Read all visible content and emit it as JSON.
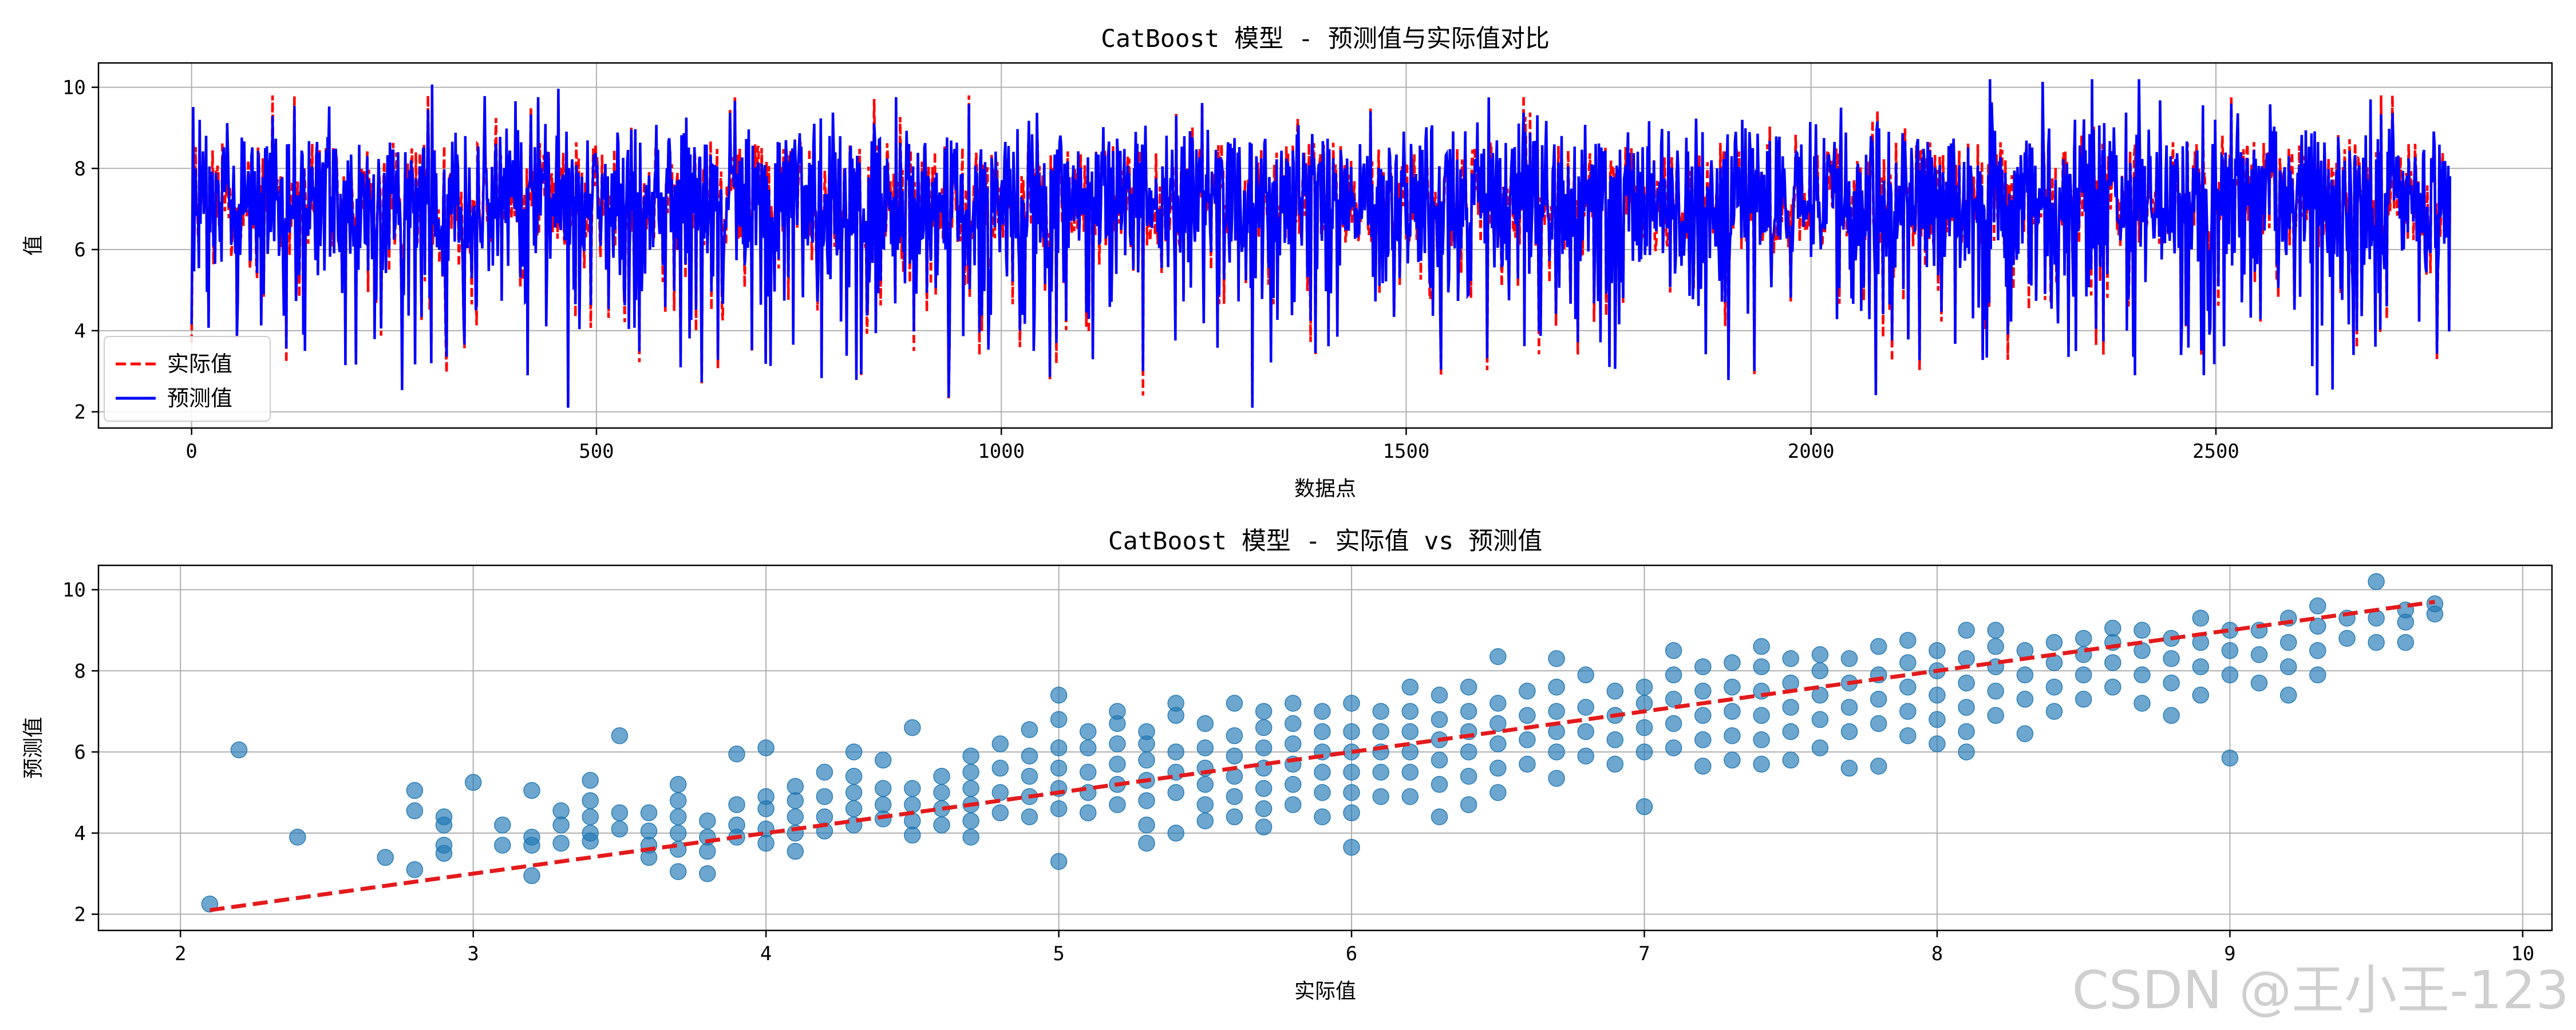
{
  "watermark": "CSDN @王小王-123",
  "colors": {
    "actual": "#ff0000",
    "predicted": "#0000ff",
    "scatter": "#1f77b4",
    "ideal": "#e31a1c",
    "grid": "#b0b0b0"
  },
  "chart_data": [
    {
      "type": "line",
      "title": "CatBoost 模型 - 预测值与实际值对比",
      "xlabel": "数据点",
      "ylabel": "值",
      "xlim": [
        -115,
        2915
      ],
      "ylim": [
        1.6,
        10.6
      ],
      "xticks": [
        0,
        500,
        1000,
        1500,
        2000,
        2500
      ],
      "yticks": [
        2,
        4,
        6,
        8,
        10
      ],
      "grid": true,
      "legend": "lower-left",
      "n_points": 2790,
      "series": [
        {
          "name": "实际值",
          "style": "dashed",
          "color": "#ff0000",
          "range": [
            2.2,
            9.8
          ],
          "notable_minima": [
            [
              465,
              2.2
            ],
            [
              935,
              2.3
            ],
            [
              1175,
              2.4
            ],
            [
              1310,
              2.2
            ],
            [
              1060,
              2.8
            ],
            [
              2080,
              2.8
            ],
            [
              2625,
              2.8
            ],
            [
              630,
              2.7
            ],
            [
              260,
              3.0
            ]
          ]
        },
        {
          "name": "预测值",
          "style": "solid",
          "color": "#0000ff",
          "range": [
            2.1,
            10.2
          ],
          "notable_minima": [
            [
              1310,
              2.1
            ],
            [
              2400,
              2.9
            ],
            [
              2485,
              2.9
            ],
            [
              2670,
              3.4
            ],
            [
              1040,
              3.5
            ],
            [
              140,
              3.5
            ]
          ],
          "notable_maxima": [
            [
              2405,
              10.2
            ]
          ]
        }
      ]
    },
    {
      "type": "scatter",
      "title": "CatBoost 模型 - 实际值 vs 预测值",
      "xlabel": "实际值",
      "ylabel": "预测值",
      "xlim": [
        1.72,
        10.1
      ],
      "ylim": [
        1.6,
        10.6
      ],
      "xticks": [
        2,
        3,
        4,
        5,
        6,
        7,
        8,
        9,
        10
      ],
      "yticks": [
        2,
        4,
        6,
        8,
        10
      ],
      "grid": true,
      "reference_line": {
        "x": [
          2.1,
          9.7
        ],
        "y": [
          2.1,
          9.7
        ],
        "style": "dashed",
        "color": "#e31a1c"
      },
      "points": [
        [
          2.1,
          2.25
        ],
        [
          2.2,
          6.05
        ],
        [
          2.4,
          3.9
        ],
        [
          2.7,
          3.4
        ],
        [
          2.8,
          3.1
        ],
        [
          2.8,
          4.55
        ],
        [
          2.8,
          5.05
        ],
        [
          2.9,
          3.5
        ],
        [
          2.9,
          3.7
        ],
        [
          2.9,
          4.2
        ],
        [
          2.9,
          4.4
        ],
        [
          3.0,
          5.25
        ],
        [
          3.1,
          3.7
        ],
        [
          3.1,
          4.2
        ],
        [
          3.2,
          2.95
        ],
        [
          3.2,
          3.7
        ],
        [
          3.2,
          3.9
        ],
        [
          3.2,
          5.05
        ],
        [
          3.3,
          3.75
        ],
        [
          3.3,
          4.2
        ],
        [
          3.3,
          4.55
        ],
        [
          3.4,
          3.8
        ],
        [
          3.4,
          4.0
        ],
        [
          3.4,
          4.4
        ],
        [
          3.4,
          4.8
        ],
        [
          3.4,
          5.3
        ],
        [
          3.5,
          4.1
        ],
        [
          3.5,
          4.5
        ],
        [
          3.5,
          6.4
        ],
        [
          3.6,
          3.4
        ],
        [
          3.6,
          3.7
        ],
        [
          3.6,
          4.05
        ],
        [
          3.6,
          4.5
        ],
        [
          3.7,
          3.05
        ],
        [
          3.7,
          3.6
        ],
        [
          3.7,
          4.0
        ],
        [
          3.7,
          4.4
        ],
        [
          3.7,
          4.8
        ],
        [
          3.7,
          5.2
        ],
        [
          3.8,
          3.0
        ],
        [
          3.8,
          3.55
        ],
        [
          3.8,
          3.9
        ],
        [
          3.8,
          4.3
        ],
        [
          3.9,
          3.9
        ],
        [
          3.9,
          4.2
        ],
        [
          3.9,
          4.7
        ],
        [
          3.9,
          5.95
        ],
        [
          4.0,
          3.75
        ],
        [
          4.0,
          4.1
        ],
        [
          4.0,
          4.6
        ],
        [
          4.0,
          4.9
        ],
        [
          4.0,
          6.1
        ],
        [
          4.1,
          3.55
        ],
        [
          4.1,
          4.0
        ],
        [
          4.1,
          4.4
        ],
        [
          4.1,
          4.8
        ],
        [
          4.1,
          5.15
        ],
        [
          4.2,
          4.05
        ],
        [
          4.2,
          4.4
        ],
        [
          4.2,
          4.9
        ],
        [
          4.2,
          5.5
        ],
        [
          4.3,
          4.2
        ],
        [
          4.3,
          4.6
        ],
        [
          4.3,
          5.0
        ],
        [
          4.3,
          5.4
        ],
        [
          4.3,
          6.0
        ],
        [
          4.4,
          4.35
        ],
        [
          4.4,
          4.7
        ],
        [
          4.4,
          5.1
        ],
        [
          4.4,
          5.8
        ],
        [
          4.5,
          3.95
        ],
        [
          4.5,
          4.3
        ],
        [
          4.5,
          4.7
        ],
        [
          4.5,
          5.1
        ],
        [
          4.5,
          6.6
        ],
        [
          4.6,
          4.2
        ],
        [
          4.6,
          4.6
        ],
        [
          4.6,
          5.0
        ],
        [
          4.6,
          5.4
        ],
        [
          4.7,
          3.9
        ],
        [
          4.7,
          4.3
        ],
        [
          4.7,
          4.7
        ],
        [
          4.7,
          5.1
        ],
        [
          4.7,
          5.5
        ],
        [
          4.7,
          5.9
        ],
        [
          4.8,
          4.5
        ],
        [
          4.8,
          5.0
        ],
        [
          4.8,
          5.6
        ],
        [
          4.8,
          6.2
        ],
        [
          4.9,
          4.4
        ],
        [
          4.9,
          4.9
        ],
        [
          4.9,
          5.4
        ],
        [
          4.9,
          5.9
        ],
        [
          4.9,
          6.55
        ],
        [
          5.0,
          3.3
        ],
        [
          5.0,
          4.6
        ],
        [
          5.0,
          5.1
        ],
        [
          5.0,
          5.6
        ],
        [
          5.0,
          6.1
        ],
        [
          5.0,
          6.8
        ],
        [
          5.0,
          7.4
        ],
        [
          5.1,
          4.5
        ],
        [
          5.1,
          5.0
        ],
        [
          5.1,
          5.5
        ],
        [
          5.1,
          6.1
        ],
        [
          5.1,
          6.5
        ],
        [
          5.2,
          4.7
        ],
        [
          5.2,
          5.2
        ],
        [
          5.2,
          5.7
        ],
        [
          5.2,
          6.2
        ],
        [
          5.2,
          6.7
        ],
        [
          5.2,
          7.0
        ],
        [
          5.3,
          3.75
        ],
        [
          5.3,
          4.2
        ],
        [
          5.3,
          4.8
        ],
        [
          5.3,
          5.3
        ],
        [
          5.3,
          5.8
        ],
        [
          5.3,
          6.2
        ],
        [
          5.3,
          6.5
        ],
        [
          5.4,
          4.0
        ],
        [
          5.4,
          5.0
        ],
        [
          5.4,
          5.5
        ],
        [
          5.4,
          6.0
        ],
        [
          5.4,
          6.9
        ],
        [
          5.4,
          7.2
        ],
        [
          5.5,
          4.3
        ],
        [
          5.5,
          4.7
        ],
        [
          5.5,
          5.2
        ],
        [
          5.5,
          5.6
        ],
        [
          5.5,
          6.1
        ],
        [
          5.5,
          6.7
        ],
        [
          5.6,
          4.4
        ],
        [
          5.6,
          4.9
        ],
        [
          5.6,
          5.4
        ],
        [
          5.6,
          5.9
        ],
        [
          5.6,
          6.4
        ],
        [
          5.6,
          7.2
        ],
        [
          5.7,
          4.15
        ],
        [
          5.7,
          4.6
        ],
        [
          5.7,
          5.1
        ],
        [
          5.7,
          5.6
        ],
        [
          5.7,
          6.1
        ],
        [
          5.7,
          6.6
        ],
        [
          5.7,
          7.0
        ],
        [
          5.8,
          4.7
        ],
        [
          5.8,
          5.2
        ],
        [
          5.8,
          5.7
        ],
        [
          5.8,
          6.2
        ],
        [
          5.8,
          6.7
        ],
        [
          5.8,
          7.2
        ],
        [
          5.9,
          4.4
        ],
        [
          5.9,
          5.0
        ],
        [
          5.9,
          5.5
        ],
        [
          5.9,
          6.0
        ],
        [
          5.9,
          6.5
        ],
        [
          5.9,
          7.0
        ],
        [
          6.0,
          3.65
        ],
        [
          6.0,
          4.5
        ],
        [
          6.0,
          5.0
        ],
        [
          6.0,
          5.5
        ],
        [
          6.0,
          6.0
        ],
        [
          6.0,
          6.5
        ],
        [
          6.0,
          7.2
        ],
        [
          6.1,
          4.9
        ],
        [
          6.1,
          5.5
        ],
        [
          6.1,
          6.0
        ],
        [
          6.1,
          6.5
        ],
        [
          6.1,
          7.0
        ],
        [
          6.2,
          4.9
        ],
        [
          6.2,
          5.5
        ],
        [
          6.2,
          6.0
        ],
        [
          6.2,
          6.5
        ],
        [
          6.2,
          7.0
        ],
        [
          6.2,
          7.6
        ],
        [
          6.3,
          4.4
        ],
        [
          6.3,
          5.2
        ],
        [
          6.3,
          5.8
        ],
        [
          6.3,
          6.3
        ],
        [
          6.3,
          6.8
        ],
        [
          6.3,
          7.4
        ],
        [
          6.4,
          4.7
        ],
        [
          6.4,
          5.4
        ],
        [
          6.4,
          6.0
        ],
        [
          6.4,
          6.5
        ],
        [
          6.4,
          7.0
        ],
        [
          6.4,
          7.6
        ],
        [
          6.5,
          5.0
        ],
        [
          6.5,
          5.6
        ],
        [
          6.5,
          6.2
        ],
        [
          6.5,
          6.7
        ],
        [
          6.5,
          7.2
        ],
        [
          6.5,
          8.35
        ],
        [
          6.6,
          5.7
        ],
        [
          6.6,
          6.3
        ],
        [
          6.6,
          6.9
        ],
        [
          6.6,
          7.5
        ],
        [
          6.7,
          5.35
        ],
        [
          6.7,
          6.0
        ],
        [
          6.7,
          6.5
        ],
        [
          6.7,
          7.0
        ],
        [
          6.7,
          7.6
        ],
        [
          6.7,
          8.3
        ],
        [
          6.8,
          5.9
        ],
        [
          6.8,
          6.5
        ],
        [
          6.8,
          7.1
        ],
        [
          6.8,
          7.9
        ],
        [
          6.9,
          5.7
        ],
        [
          6.9,
          6.3
        ],
        [
          6.9,
          6.9
        ],
        [
          6.9,
          7.5
        ],
        [
          7.0,
          4.65
        ],
        [
          7.0,
          6.0
        ],
        [
          7.0,
          6.6
        ],
        [
          7.0,
          7.2
        ],
        [
          7.0,
          7.6
        ],
        [
          7.1,
          6.1
        ],
        [
          7.1,
          6.7
        ],
        [
          7.1,
          7.3
        ],
        [
          7.1,
          7.9
        ],
        [
          7.1,
          8.5
        ],
        [
          7.2,
          5.65
        ],
        [
          7.2,
          6.3
        ],
        [
          7.2,
          6.9
        ],
        [
          7.2,
          7.5
        ],
        [
          7.2,
          8.1
        ],
        [
          7.3,
          5.8
        ],
        [
          7.3,
          6.4
        ],
        [
          7.3,
          7.0
        ],
        [
          7.3,
          7.6
        ],
        [
          7.3,
          8.2
        ],
        [
          7.4,
          5.7
        ],
        [
          7.4,
          6.3
        ],
        [
          7.4,
          6.9
        ],
        [
          7.4,
          7.5
        ],
        [
          7.4,
          8.1
        ],
        [
          7.4,
          8.6
        ],
        [
          7.5,
          5.8
        ],
        [
          7.5,
          6.5
        ],
        [
          7.5,
          7.1
        ],
        [
          7.5,
          7.7
        ],
        [
          7.5,
          8.3
        ],
        [
          7.6,
          6.1
        ],
        [
          7.6,
          6.8
        ],
        [
          7.6,
          7.4
        ],
        [
          7.6,
          8.0
        ],
        [
          7.6,
          8.4
        ],
        [
          7.7,
          5.6
        ],
        [
          7.7,
          6.5
        ],
        [
          7.7,
          7.1
        ],
        [
          7.7,
          7.7
        ],
        [
          7.7,
          8.3
        ],
        [
          7.8,
          5.65
        ],
        [
          7.8,
          6.7
        ],
        [
          7.8,
          7.3
        ],
        [
          7.8,
          7.9
        ],
        [
          7.8,
          8.6
        ],
        [
          7.9,
          6.4
        ],
        [
          7.9,
          7.0
        ],
        [
          7.9,
          7.6
        ],
        [
          7.9,
          8.2
        ],
        [
          7.9,
          8.75
        ],
        [
          8.0,
          6.2
        ],
        [
          8.0,
          6.8
        ],
        [
          8.0,
          7.4
        ],
        [
          8.0,
          8.0
        ],
        [
          8.0,
          8.5
        ],
        [
          8.1,
          6.0
        ],
        [
          8.1,
          6.5
        ],
        [
          8.1,
          7.1
        ],
        [
          8.1,
          7.7
        ],
        [
          8.1,
          8.3
        ],
        [
          8.1,
          9.0
        ],
        [
          8.2,
          6.9
        ],
        [
          8.2,
          7.5
        ],
        [
          8.2,
          8.1
        ],
        [
          8.2,
          8.6
        ],
        [
          8.2,
          9.0
        ],
        [
          8.3,
          6.45
        ],
        [
          8.3,
          7.3
        ],
        [
          8.3,
          7.9
        ],
        [
          8.3,
          8.5
        ],
        [
          8.4,
          7.0
        ],
        [
          8.4,
          7.6
        ],
        [
          8.4,
          8.2
        ],
        [
          8.4,
          8.7
        ],
        [
          8.5,
          7.3
        ],
        [
          8.5,
          7.9
        ],
        [
          8.5,
          8.4
        ],
        [
          8.5,
          8.8
        ],
        [
          8.6,
          7.6
        ],
        [
          8.6,
          8.2
        ],
        [
          8.6,
          8.7
        ],
        [
          8.6,
          9.05
        ],
        [
          8.7,
          7.2
        ],
        [
          8.7,
          7.9
        ],
        [
          8.7,
          8.5
        ],
        [
          8.7,
          9.0
        ],
        [
          8.8,
          6.9
        ],
        [
          8.8,
          7.7
        ],
        [
          8.8,
          8.3
        ],
        [
          8.8,
          8.8
        ],
        [
          8.9,
          7.4
        ],
        [
          8.9,
          8.1
        ],
        [
          8.9,
          8.7
        ],
        [
          8.9,
          9.3
        ],
        [
          9.0,
          5.85
        ],
        [
          9.0,
          7.9
        ],
        [
          9.0,
          8.5
        ],
        [
          9.0,
          9.0
        ],
        [
          9.1,
          7.7
        ],
        [
          9.1,
          8.4
        ],
        [
          9.1,
          9.0
        ],
        [
          9.2,
          7.4
        ],
        [
          9.2,
          8.1
        ],
        [
          9.2,
          8.7
        ],
        [
          9.2,
          9.3
        ],
        [
          9.3,
          7.9
        ],
        [
          9.3,
          8.5
        ],
        [
          9.3,
          9.1
        ],
        [
          9.3,
          9.6
        ],
        [
          9.4,
          8.8
        ],
        [
          9.4,
          9.3
        ],
        [
          9.5,
          8.7
        ],
        [
          9.5,
          9.3
        ],
        [
          9.5,
          10.2
        ],
        [
          9.6,
          8.7
        ],
        [
          9.6,
          9.2
        ],
        [
          9.6,
          9.5
        ],
        [
          9.7,
          9.4
        ],
        [
          9.7,
          9.65
        ]
      ]
    }
  ]
}
